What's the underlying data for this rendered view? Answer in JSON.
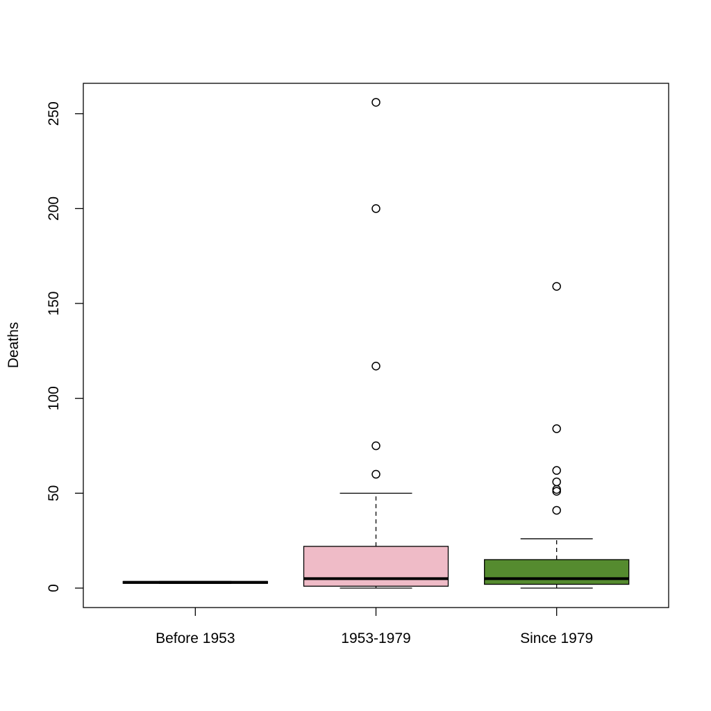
{
  "chart_data": {
    "type": "box",
    "title": "",
    "xlabel": "",
    "ylabel": "Deaths",
    "ylim": [
      -10,
      266
    ],
    "yticks": [
      0,
      50,
      100,
      150,
      200,
      250
    ],
    "categories": [
      "Before 1953",
      "1953-1979",
      "Since 1979"
    ],
    "boxes": [
      {
        "name": "Before 1953",
        "color": "#000000",
        "whisker_low": 2.5,
        "q1": 2.5,
        "median": 3,
        "q3": 3.5,
        "whisker_high": 3.5,
        "outliers": []
      },
      {
        "name": "1953-1979",
        "color": "#efbbc7",
        "whisker_low": 0,
        "q1": 1,
        "median": 5,
        "q3": 22,
        "whisker_high": 50,
        "outliers": [
          60,
          75,
          117,
          200,
          256
        ]
      },
      {
        "name": "Since 1979",
        "color": "#558b2f",
        "whisker_low": 0,
        "q1": 2,
        "median": 5,
        "q3": 15,
        "whisker_high": 26,
        "outliers": [
          41,
          51,
          52,
          56,
          62,
          84,
          159
        ]
      }
    ]
  }
}
